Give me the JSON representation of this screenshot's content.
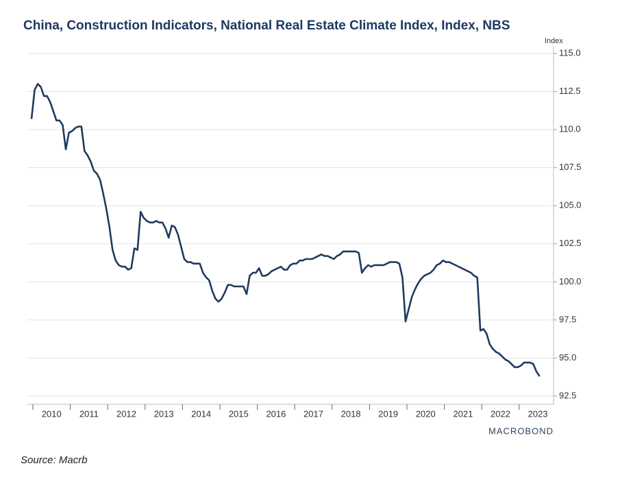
{
  "chart_data": {
    "type": "line",
    "title": "China, Construction Indicators, National Real Estate Climate Index, Index, NBS",
    "y_axis_label": "Index",
    "brand": "MACROBOND",
    "source": "Source: Macrb",
    "categories": [
      "2010",
      null,
      null,
      null,
      null,
      null,
      null,
      null,
      null,
      null,
      null,
      null,
      "2011",
      null,
      null,
      null,
      null,
      null,
      null,
      null,
      null,
      null,
      null,
      null,
      "2012",
      null,
      null,
      null,
      null,
      null,
      null,
      null,
      null,
      null,
      null,
      null,
      "2013",
      null,
      null,
      null,
      null,
      null,
      null,
      null,
      null,
      null,
      null,
      null,
      "2014",
      null,
      null,
      null,
      null,
      null,
      null,
      null,
      null,
      null,
      null,
      null,
      "2015",
      null,
      null,
      null,
      null,
      null,
      null,
      null,
      null,
      null,
      null,
      null,
      "2016",
      null,
      null,
      null,
      null,
      null,
      null,
      null,
      null,
      null,
      null,
      null,
      "2017",
      null,
      null,
      null,
      null,
      null,
      null,
      null,
      null,
      null,
      null,
      null,
      "2018",
      null,
      null,
      null,
      null,
      null,
      null,
      null,
      null,
      null,
      null,
      null,
      "2019",
      null,
      null,
      null,
      null,
      null,
      null,
      null,
      null,
      null,
      null,
      null,
      "2020",
      null,
      null,
      null,
      null,
      null,
      null,
      null,
      null,
      null,
      null,
      null,
      "2021",
      null,
      null,
      null,
      null,
      null,
      null,
      null,
      null,
      null,
      null,
      null,
      "2022",
      null,
      null,
      null,
      null,
      null,
      null,
      null,
      null,
      null,
      null,
      null,
      "2023",
      null,
      null,
      null,
      null,
      null,
      null,
      null
    ],
    "series": [
      {
        "color": "#1f3a5f",
        "values": [
          110.7,
          112.6,
          113.0,
          112.8,
          112.2,
          112.2,
          111.8,
          111.2,
          110.6,
          110.6,
          110.3,
          108.7,
          109.8,
          109.9,
          110.1,
          110.2,
          110.2,
          108.6,
          108.3,
          107.9,
          107.3,
          107.1,
          106.7,
          105.8,
          104.8,
          103.6,
          102.1,
          101.4,
          101.1,
          101.0,
          101.0,
          100.8,
          100.9,
          102.2,
          102.1,
          104.6,
          104.2,
          104.0,
          103.9,
          103.9,
          104.0,
          103.9,
          103.9,
          103.5,
          102.9,
          103.7,
          103.6,
          103.1,
          102.3,
          101.5,
          101.3,
          101.3,
          101.2,
          101.2,
          101.2,
          100.6,
          100.3,
          100.1,
          99.4,
          98.9,
          98.7,
          98.9,
          99.3,
          99.8,
          99.8,
          99.7,
          99.7,
          99.7,
          99.7,
          99.2,
          100.4,
          100.6,
          100.6,
          100.9,
          100.4,
          100.4,
          100.5,
          100.7,
          100.8,
          100.9,
          101.0,
          100.8,
          100.8,
          101.1,
          101.2,
          101.2,
          101.4,
          101.4,
          101.5,
          101.5,
          101.5,
          101.6,
          101.7,
          101.8,
          101.7,
          101.7,
          101.6,
          101.5,
          101.7,
          101.8,
          102.0,
          102.0,
          102.0,
          102.0,
          102.0,
          101.9,
          100.6,
          100.9,
          101.1,
          101.0,
          101.1,
          101.1,
          101.1,
          101.1,
          101.2,
          101.3,
          101.3,
          101.3,
          101.2,
          100.3,
          97.4,
          98.2,
          99.0,
          99.5,
          99.9,
          100.2,
          100.4,
          100.5,
          100.6,
          100.8,
          101.1,
          101.2,
          101.4,
          101.3,
          101.3,
          101.2,
          101.1,
          101.0,
          100.9,
          100.8,
          100.7,
          100.6,
          100.4,
          100.3,
          96.8,
          96.9,
          96.6,
          95.9,
          95.6,
          95.4,
          95.3,
          95.1,
          94.9,
          94.8,
          94.6,
          94.4,
          94.4,
          94.5,
          94.7,
          94.7,
          94.7,
          94.6,
          94.1,
          93.8
        ]
      }
    ],
    "ylim": [
      92.5,
      115.0
    ],
    "yticks": [
      {
        "value": 92.5,
        "label": "92.5"
      },
      {
        "value": 95,
        "label": "95.0"
      },
      {
        "value": 97.5,
        "label": "97.5"
      },
      {
        "value": 100,
        "label": "100.0"
      },
      {
        "value": 102.5,
        "label": "102.5"
      },
      {
        "value": 105,
        "label": "105.0"
      },
      {
        "value": 107.5,
        "label": "107.5"
      },
      {
        "value": 110,
        "label": "110.0"
      },
      {
        "value": 112.5,
        "label": "112.5"
      },
      {
        "value": 115,
        "label": "115.0"
      }
    ],
    "grid": true
  }
}
